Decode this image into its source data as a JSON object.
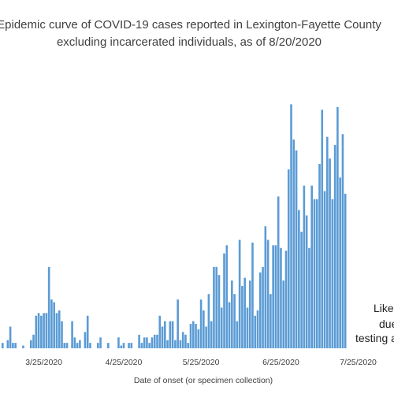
{
  "chart_data": {
    "type": "bar",
    "title_lines": [
      "Epidemic curve of COVID-19 cases reported in Lexington-Fayette County",
      "excluding incarcerated individuals, as of 8/20/2020"
    ],
    "xlabel": "Date of onset (or specimen collection)",
    "ylabel": "",
    "x_tick_labels": [
      "3/25/2020",
      "4/25/2020",
      "5/25/2020",
      "6/25/2020",
      "7/25/2020"
    ],
    "annotation_lines": [
      "Likel",
      "due",
      "testing a"
    ],
    "bar_color": "#5b9bd5",
    "grid": false,
    "ylim": [
      0,
      100
    ],
    "start_date": "2020-03-09",
    "values": [
      2,
      0,
      3,
      8,
      2,
      2,
      0,
      0,
      1,
      0,
      0,
      3,
      5,
      12,
      13,
      12,
      13,
      13,
      30,
      18,
      17,
      13,
      14,
      10,
      2,
      2,
      0,
      10,
      4,
      2,
      3,
      0,
      6,
      12,
      2,
      0,
      0,
      2,
      4,
      0,
      0,
      2,
      0,
      0,
      0,
      4,
      1,
      2,
      0,
      2,
      2,
      0,
      0,
      5,
      2,
      4,
      4,
      2,
      4,
      5,
      5,
      12,
      8,
      10,
      3,
      10,
      10,
      3,
      18,
      3,
      6,
      5,
      2,
      9,
      10,
      9,
      7,
      18,
      14,
      8,
      20,
      10,
      30,
      30,
      27,
      15,
      35,
      38,
      17,
      25,
      20,
      10,
      40,
      23,
      26,
      15,
      25,
      39,
      12,
      14,
      28,
      30,
      45,
      40,
      20,
      38,
      38,
      56,
      37,
      25,
      36,
      66,
      90,
      77,
      73,
      51,
      43,
      60,
      49,
      37,
      60,
      55,
      55,
      68,
      88,
      58,
      78,
      70,
      55,
      75,
      89,
      63,
      79,
      57
    ]
  }
}
